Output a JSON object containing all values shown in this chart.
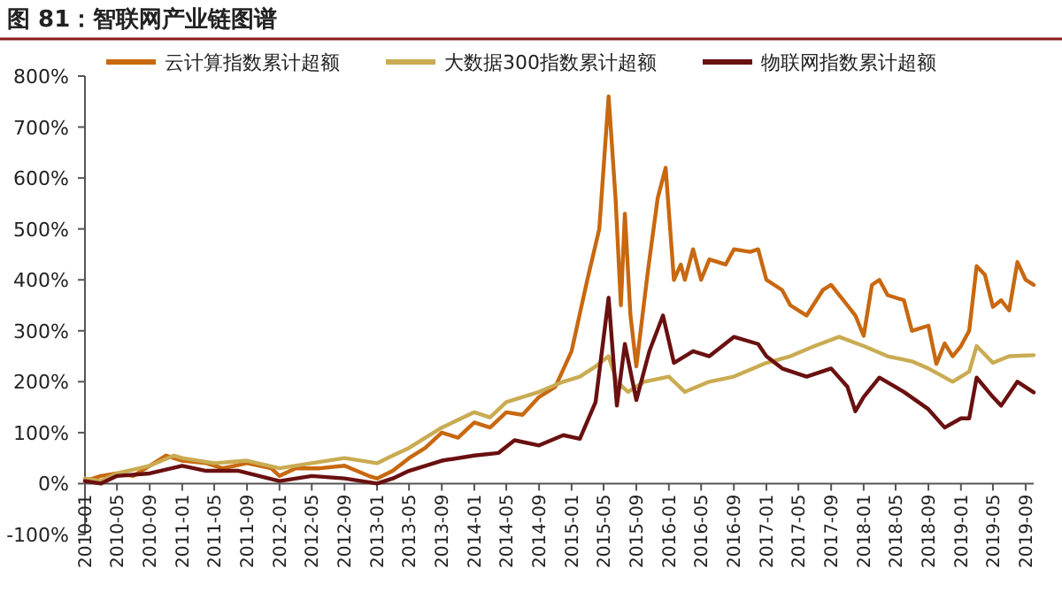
{
  "chart_data": {
    "type": "line",
    "title": "图 81：智联网产业链图谱",
    "xlim": [
      "2010-01",
      "2019-10"
    ],
    "xticks": [
      "2010-01",
      "2010-05",
      "2010-09",
      "2011-01",
      "2011-05",
      "2011-09",
      "2012-01",
      "2012-05",
      "2012-09",
      "2013-01",
      "2013-05",
      "2013-09",
      "2014-01",
      "2014-05",
      "2014-09",
      "2015-01",
      "2015-05",
      "2015-09",
      "2016-01",
      "2016-05",
      "2016-09",
      "2017-01",
      "2017-05",
      "2017-09",
      "2018-01",
      "2018-05",
      "2018-09",
      "2019-01",
      "2019-05",
      "2019-09"
    ],
    "ylim": [
      -100,
      800
    ],
    "yticks": [
      {
        "value": -100,
        "label": "-100%"
      },
      {
        "value": 0,
        "label": "0%"
      },
      {
        "value": 100,
        "label": "100%"
      },
      {
        "value": 200,
        "label": "200%"
      },
      {
        "value": 300,
        "label": "300%"
      },
      {
        "value": 400,
        "label": "400%"
      },
      {
        "value": 500,
        "label": "500%"
      },
      {
        "value": 600,
        "label": "600%"
      },
      {
        "value": 700,
        "label": "700%"
      },
      {
        "value": 800,
        "label": "800%"
      }
    ],
    "grid": false,
    "legend": "top",
    "marker": "none",
    "line_style": "solid",
    "series": [
      {
        "name": "云计算指数累计超额",
        "color": "#c8680f",
        "x": [
          "2010-01",
          "2010-03",
          "2010-05",
          "2010-07",
          "2010-09",
          "2010-11",
          "2011-01",
          "2011-04",
          "2011-06",
          "2011-09",
          "2011-12",
          "2012-01",
          "2012-03",
          "2012-06",
          "2012-09",
          "2012-12",
          "2013-01",
          "2013-03",
          "2013-05",
          "2013-07",
          "2013-09",
          "2013-11",
          "2014-01",
          "2014-03",
          "2014-05",
          "2014-07",
          "2014-09",
          "2014-11",
          "2015-01",
          "2015-03",
          "2015-04-15",
          "2015-05-20",
          "2015-06-15",
          "2015-07-05",
          "2015-07-20",
          "2015-08-10",
          "2015-09-01",
          "2015-10-15",
          "2015-11-20",
          "2015-12-20",
          "2016-01-20",
          "2016-02-15",
          "2016-03",
          "2016-04",
          "2016-05",
          "2016-06",
          "2016-08",
          "2016-09",
          "2016-11",
          "2016-12",
          "2017-01",
          "2017-03",
          "2017-04",
          "2017-06",
          "2017-08",
          "2017-09",
          "2017-11",
          "2017-12",
          "2018-01",
          "2018-02",
          "2018-03",
          "2018-04",
          "2018-06",
          "2018-07",
          "2018-09",
          "2018-10",
          "2018-11",
          "2018-12",
          "2019-01",
          "2019-02",
          "2019-03",
          "2019-04",
          "2019-05",
          "2019-06",
          "2019-07",
          "2019-08",
          "2019-09",
          "2019-10"
        ],
        "values": [
          5,
          15,
          20,
          15,
          35,
          55,
          45,
          40,
          30,
          40,
          30,
          15,
          30,
          30,
          35,
          15,
          10,
          25,
          50,
          70,
          100,
          90,
          120,
          110,
          140,
          135,
          170,
          190,
          260,
          400,
          500,
          760,
          560,
          350,
          530,
          330,
          230,
          420,
          560,
          620,
          400,
          430,
          400,
          460,
          400,
          440,
          430,
          460,
          455,
          460,
          400,
          380,
          350,
          330,
          380,
          390,
          350,
          330,
          290,
          390,
          400,
          370,
          360,
          300,
          310,
          235,
          275,
          250,
          270,
          300,
          427,
          410,
          347,
          360,
          340,
          435,
          400,
          390
        ]
      },
      {
        "name": "大数据300指数累计超额",
        "color": "#c9ab52",
        "x": [
          "2010-01",
          "2010-03",
          "2010-05",
          "2010-09",
          "2010-12",
          "2011-01",
          "2011-05",
          "2011-09",
          "2012-01",
          "2012-05",
          "2012-09",
          "2013-01",
          "2013-03",
          "2013-05",
          "2013-09",
          "2014-01",
          "2014-03",
          "2014-05",
          "2014-09",
          "2014-12",
          "2015-02",
          "2015-04",
          "2015-05-20",
          "2015-06-20",
          "2015-08",
          "2015-10",
          "2016-01",
          "2016-03",
          "2016-06",
          "2016-09",
          "2017-01",
          "2017-04",
          "2017-07",
          "2017-10",
          "2018-01",
          "2018-04",
          "2018-07",
          "2018-09",
          "2018-12",
          "2019-02",
          "2019-03",
          "2019-05",
          "2019-07",
          "2019-10"
        ],
        "values": [
          10,
          5,
          20,
          35,
          55,
          50,
          40,
          45,
          30,
          40,
          50,
          40,
          55,
          70,
          110,
          140,
          130,
          160,
          180,
          200,
          210,
          230,
          250,
          200,
          180,
          200,
          210,
          180,
          200,
          210,
          237,
          250,
          270,
          288,
          270,
          250,
          240,
          226,
          200,
          220,
          270,
          237,
          250,
          252
        ]
      },
      {
        "name": "物联网指数累计超额",
        "color": "#6a1010",
        "x": [
          "2010-01",
          "2010-03",
          "2010-05",
          "2010-09",
          "2011-01",
          "2011-04",
          "2011-08",
          "2012-01",
          "2012-05",
          "2012-09",
          "2013-01",
          "2013-03",
          "2013-05",
          "2013-09",
          "2014-01",
          "2014-04",
          "2014-06",
          "2014-09",
          "2014-12",
          "2015-02",
          "2015-04",
          "2015-05-20",
          "2015-06-20",
          "2015-07-20",
          "2015-09-01",
          "2015-10-20",
          "2015-12-10",
          "2016-01-20",
          "2016-04",
          "2016-06",
          "2016-09",
          "2016-12",
          "2017-01",
          "2017-03",
          "2017-06",
          "2017-09",
          "2017-11",
          "2017-12",
          "2018-01",
          "2018-03",
          "2018-06",
          "2018-09",
          "2018-11",
          "2019-01",
          "2019-02",
          "2019-03",
          "2019-05",
          "2019-06",
          "2019-08",
          "2019-10"
        ],
        "values": [
          5,
          0,
          15,
          20,
          35,
          25,
          25,
          5,
          15,
          10,
          0,
          10,
          25,
          45,
          55,
          60,
          85,
          75,
          95,
          88,
          160,
          365,
          153,
          274,
          164,
          260,
          330,
          237,
          260,
          250,
          288,
          274,
          250,
          226,
          210,
          226,
          190,
          142,
          170,
          208,
          180,
          146,
          110,
          128,
          128,
          208,
          170,
          153,
          200,
          179
        ]
      }
    ]
  }
}
